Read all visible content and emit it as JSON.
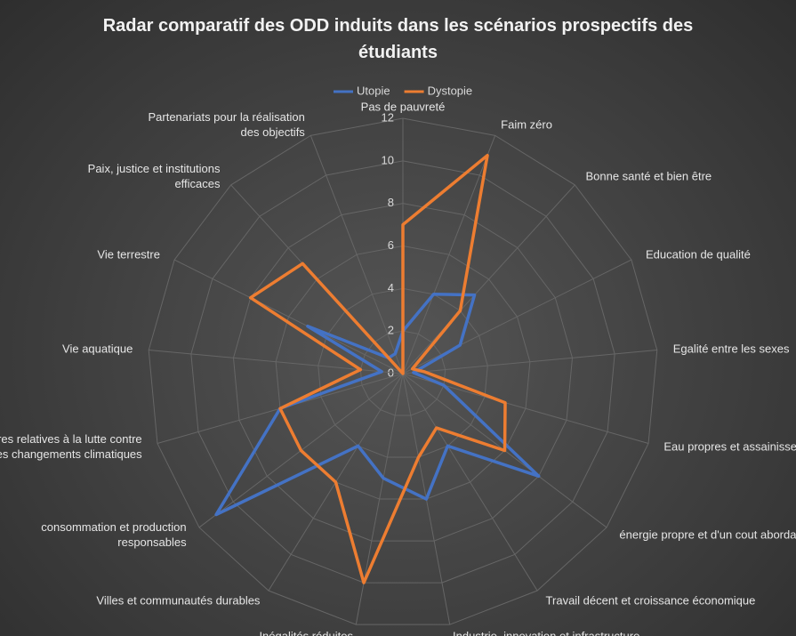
{
  "chart_data": {
    "type": "radar",
    "title": "Radar comparatif des ODD induits dans les scénarios prospectifs des étudiants",
    "categories": [
      "Pas de pauvreté",
      "Faim zéro",
      "Bonne santé et bien être",
      "Education de qualité",
      "Egalité entre les sexes",
      "Eau propres et assainissement",
      "énergie propre et d'un cout abordable",
      "Travail décent et croissance économique",
      "Industrie, innovation et infrastructure",
      "Inégalités réduites",
      "Villes et communautés durables",
      "consommation et production responsables",
      "Mesures relatives à la lutte contre les changements climatiques",
      "Vie aquatique",
      "Vie terrestre",
      "Paix, justice et institutions efficaces",
      "Partenariats pour la réalisation des objectifs"
    ],
    "series": [
      {
        "name": "Utopie",
        "color": "#4472c4",
        "values": [
          2,
          4,
          5,
          3,
          0.5,
          2,
          8,
          4,
          6,
          5,
          4,
          11,
          6,
          1,
          5,
          1,
          1
        ]
      },
      {
        "name": "Dystopie",
        "color": "#ed7d31",
        "values": [
          7,
          11,
          4,
          0.5,
          1,
          5,
          6,
          3,
          4,
          10,
          6,
          6,
          6,
          2,
          8,
          7,
          0
        ]
      }
    ],
    "ylim": [
      0,
      12
    ],
    "yticks": [
      0,
      2,
      4,
      6,
      8,
      10,
      12
    ],
    "grid": true,
    "legend": "top"
  }
}
